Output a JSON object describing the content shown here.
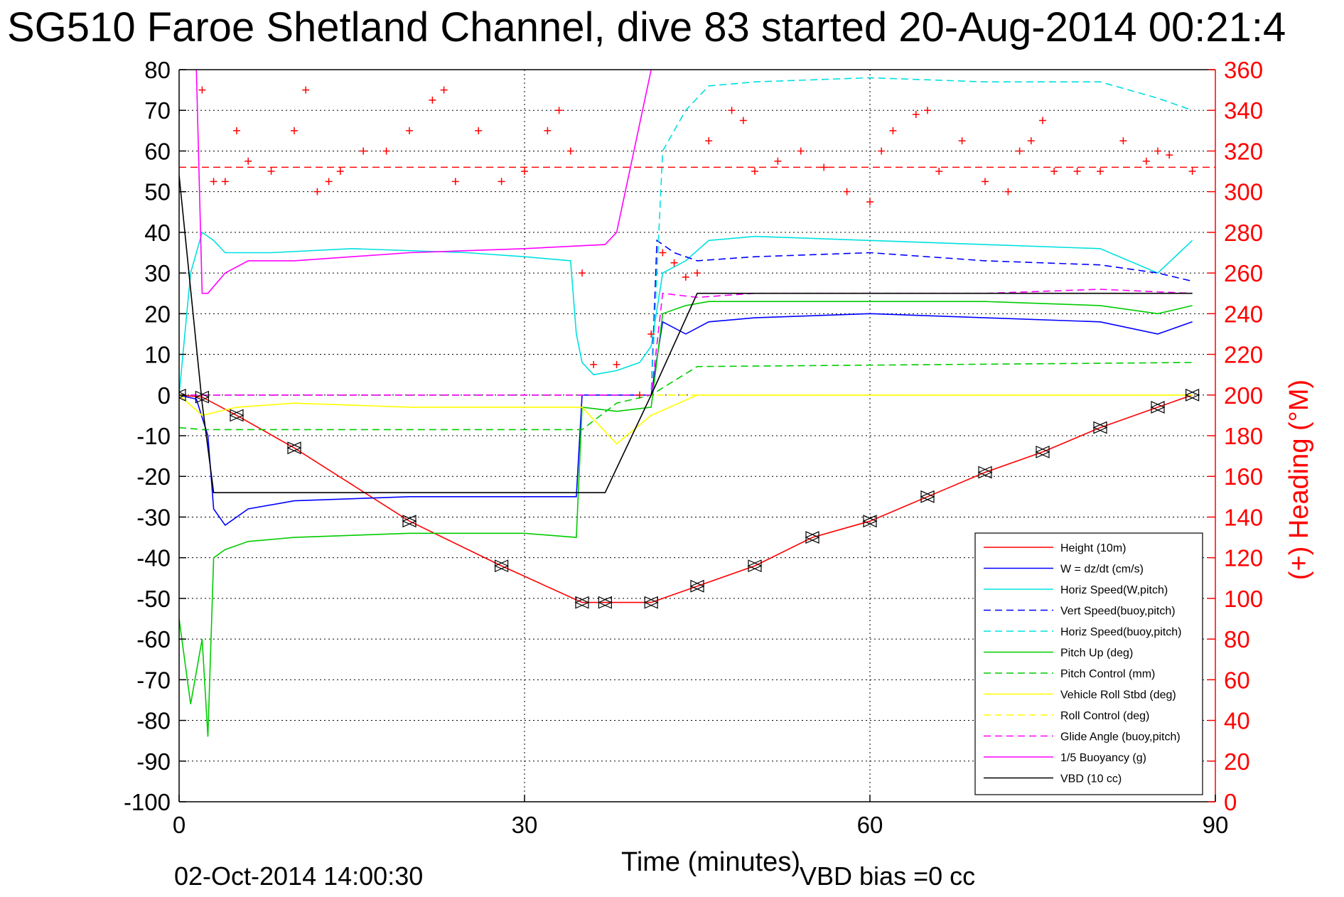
{
  "chart_data": {
    "type": "line",
    "title": "SG510 Faroe Shetland Channel, dive 83 started 20-Aug-2014 00:21:4",
    "xlabel": "Time (minutes)",
    "ylabel": "",
    "y2label": "(+) Heading (°M)",
    "xlim": [
      0,
      90
    ],
    "ylim": [
      -100,
      80
    ],
    "y2lim": [
      0,
      360
    ],
    "xticks": [
      0,
      30,
      60,
      90
    ],
    "yticks": [
      80,
      70,
      60,
      50,
      40,
      30,
      20,
      10,
      0,
      -10,
      -20,
      -30,
      -40,
      -50,
      -60,
      -70,
      -80,
      -90,
      -100
    ],
    "y2ticks": [
      360,
      340,
      320,
      300,
      280,
      260,
      240,
      220,
      200,
      180,
      160,
      140,
      120,
      100,
      80,
      60,
      40,
      20,
      0
    ],
    "grid": true,
    "legend_position": "bottom-right",
    "footer_left": "02-Oct-2014 14:00:30",
    "footer_right": "VBD bias =0 cc",
    "colors": {
      "axis_left": "#000000",
      "axis_right": "#ff0000"
    },
    "series": [
      {
        "name": "Height (10m)",
        "color": "#ff0000",
        "dash": "solid",
        "x": [
          0,
          2,
          5,
          10,
          20,
          28,
          35,
          37,
          41,
          45,
          50,
          55,
          60,
          65,
          70,
          75,
          80,
          85,
          88
        ],
        "y": [
          0,
          -0.5,
          -5,
          -13,
          -31,
          -42,
          -51,
          -51,
          -51,
          -47,
          -42,
          -35,
          -31,
          -25,
          -19,
          -14,
          -8,
          -3,
          0
        ]
      },
      {
        "name": "W = dz/dt (cm/s)",
        "color": "#0000ff",
        "dash": "solid",
        "x": [
          0,
          1.5,
          2.5,
          3,
          4,
          6,
          10,
          20,
          30,
          34.5,
          35,
          38,
          41,
          42,
          44,
          46,
          50,
          60,
          70,
          80,
          85,
          88
        ],
        "y": [
          0,
          -1,
          -10,
          -28,
          -32,
          -28,
          -26,
          -25,
          -25,
          -25,
          0,
          0,
          0,
          18,
          15,
          18,
          19,
          20,
          19,
          18,
          15,
          18
        ]
      },
      {
        "name": "Horiz Speed(W,pitch)",
        "color": "#00e0e0",
        "dash": "solid",
        "x": [
          0,
          1,
          2,
          3,
          4,
          8,
          15,
          25,
          30,
          34,
          34.5,
          35,
          36,
          38,
          40,
          41,
          42,
          44,
          46,
          50,
          60,
          70,
          80,
          85,
          88
        ],
        "y": [
          0,
          30,
          40,
          38,
          35,
          35,
          36,
          35,
          34,
          33,
          15,
          8,
          5,
          6,
          8,
          12,
          30,
          33,
          38,
          39,
          38,
          37,
          36,
          30,
          38
        ]
      },
      {
        "name": "Vert Speed(buoy,pitch)",
        "color": "#0000ff",
        "dash": "dash",
        "x": [
          0,
          34,
          35,
          38,
          41,
          41.5,
          43,
          45,
          50,
          60,
          70,
          80,
          85,
          88
        ],
        "y": [
          0,
          0,
          0,
          0,
          0,
          38,
          35,
          33,
          34,
          35,
          33,
          32,
          30,
          28
        ]
      },
      {
        "name": "Horiz Speed(buoy,pitch)",
        "color": "#00e0e0",
        "dash": "dash",
        "x": [
          0,
          34,
          35,
          38,
          41,
          42,
          44,
          46,
          50,
          60,
          70,
          80,
          85,
          88
        ],
        "y": [
          0,
          0,
          0,
          0,
          0,
          60,
          70,
          76,
          77,
          78,
          77,
          77,
          73,
          70
        ]
      },
      {
        "name": "Pitch Up (deg)",
        "color": "#00cc00",
        "dash": "solid",
        "x": [
          0,
          1,
          2,
          2.5,
          3,
          4,
          6,
          10,
          20,
          30,
          34.5,
          35,
          38,
          41,
          42,
          44,
          46,
          50,
          60,
          70,
          80,
          85,
          88
        ],
        "y": [
          -55,
          -76,
          -60,
          -84,
          -40,
          -38,
          -36,
          -35,
          -34,
          -34,
          -35,
          -3,
          -4,
          -3,
          20,
          22,
          23,
          23,
          23,
          23,
          22,
          20,
          22
        ]
      },
      {
        "name": "Pitch Control (mm)",
        "color": "#00cc00",
        "dash": "dash",
        "x": [
          0,
          2,
          35,
          38,
          41,
          45,
          88
        ],
        "y": [
          -8,
          -8.5,
          -8.5,
          -2,
          0,
          7,
          8
        ]
      },
      {
        "name": "Vehicle Roll Stbd (deg)",
        "color": "#ffff00",
        "dash": "solid",
        "x": [
          0,
          2,
          5,
          10,
          20,
          30,
          35,
          38,
          41,
          45,
          60,
          70,
          80,
          88
        ],
        "y": [
          0,
          -5,
          -3,
          -2,
          -3,
          -3,
          -3,
          -12,
          -5,
          0,
          0,
          0,
          0,
          0
        ]
      },
      {
        "name": "Roll Control (deg)",
        "color": "#ffff00",
        "dash": "dash",
        "x": [
          0,
          2,
          35,
          38,
          41,
          45,
          88
        ],
        "y": [
          0,
          0,
          0,
          0,
          0,
          0,
          0
        ]
      },
      {
        "name": "Glide Angle (buoy,pitch)",
        "color": "#ff00ff",
        "dash": "dash",
        "x": [
          0,
          34,
          35,
          41,
          42,
          45,
          50,
          60,
          70,
          80,
          88
        ],
        "y": [
          0,
          0,
          0,
          0,
          25,
          24,
          25,
          25,
          25,
          26,
          25
        ]
      },
      {
        "name": "1/5 Buoyancy (g)",
        "color": "#ff00ff",
        "dash": "solid",
        "x": [
          1.5,
          2,
          2.5,
          4,
          6,
          10,
          20,
          30,
          37,
          38,
          41
        ],
        "y": [
          80,
          25,
          25,
          30,
          33,
          33,
          35,
          36,
          37,
          40,
          80
        ]
      },
      {
        "name": "VBD (10 cc)",
        "color": "#000000",
        "dash": "solid",
        "x": [
          0,
          2,
          3,
          10,
          20,
          30,
          37,
          41,
          45,
          88
        ],
        "y": [
          54,
          -2,
          -24,
          -24,
          -24,
          -24,
          -24,
          0,
          25,
          25
        ]
      }
    ],
    "heading": {
      "name": "(+) Heading (°M)",
      "color": "#ff0000",
      "reference": 312,
      "x": [
        0,
        2,
        3,
        4,
        5,
        6,
        8,
        10,
        11,
        12,
        13,
        14,
        16,
        18,
        20,
        22,
        23,
        24,
        26,
        28,
        30,
        32,
        33,
        34,
        35,
        36,
        38,
        40,
        41,
        42,
        43,
        44,
        45,
        46,
        48,
        49,
        50,
        52,
        54,
        56,
        58,
        60,
        61,
        62,
        64,
        65,
        66,
        68,
        70,
        72,
        73,
        74,
        75,
        76,
        78,
        80,
        82,
        84,
        85,
        86,
        88
      ],
      "y": [
        340,
        350,
        305,
        305,
        330,
        315,
        310,
        330,
        350,
        300,
        305,
        310,
        320,
        320,
        330,
        345,
        350,
        305,
        330,
        305,
        310,
        330,
        340,
        320,
        260,
        215,
        215,
        200,
        230,
        270,
        265,
        258,
        260,
        325,
        340,
        335,
        310,
        315,
        320,
        312,
        300,
        295,
        320,
        330,
        338,
        340,
        310,
        325,
        305,
        300,
        320,
        325,
        335,
        310,
        310,
        310,
        325,
        315,
        320,
        318,
        310
      ]
    }
  }
}
